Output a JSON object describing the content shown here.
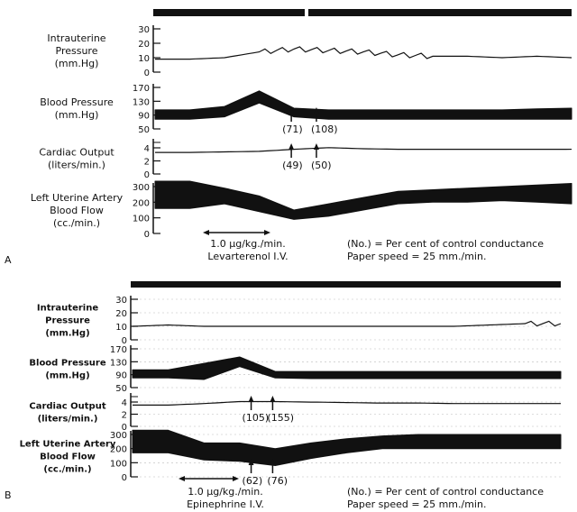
{
  "chart_data": [
    {
      "type": "line",
      "panel_label": "A",
      "footer": {
        "dose": "1.0 µg/kg./min.",
        "drug": "Levarterenol I.V.",
        "legend_note": "(No.) = Per cent of control conductance",
        "paper_speed": "Paper speed = 25 mm./min."
      },
      "tracks": [
        {
          "label": [
            "Intrauterine",
            "Pressure",
            "(mm.Hg)"
          ],
          "ticks": [
            "30",
            "20",
            "10",
            "0"
          ],
          "ylim": [
            0,
            30
          ],
          "values": [
            9,
            9,
            10,
            14,
            16,
            15,
            14,
            12,
            11,
            11,
            10,
            11,
            10
          ]
        },
        {
          "label": [
            "Blood Pressure",
            "(mm.Hg)"
          ],
          "ticks": [
            "170",
            "130",
            "90",
            "50"
          ],
          "ylim": [
            50,
            170
          ],
          "band_low": [
            78,
            78,
            85,
            125,
            85,
            78,
            78,
            78,
            78,
            78,
            78,
            78,
            78
          ],
          "band_high": [
            105,
            105,
            115,
            160,
            110,
            105,
            105,
            105,
            105,
            105,
            105,
            108,
            110
          ],
          "annotations": [
            {
              "text": "(71)",
              "at": 0.33
            },
            {
              "text": "(108)",
              "at": 0.39
            }
          ]
        },
        {
          "label": [
            "Cardiac Output",
            "(liters/min.)"
          ],
          "ticks": [
            "4",
            "2",
            "0"
          ],
          "ylim": [
            0,
            6
          ],
          "values": [
            4.1,
            4.1,
            4.2,
            4.3,
            4.7,
            5.0,
            4.8,
            4.7,
            4.7,
            4.7,
            4.7,
            4.7,
            4.7
          ],
          "annotations": [
            {
              "text": "(49)",
              "at": 0.33
            },
            {
              "text": "(50)",
              "at": 0.39
            }
          ]
        },
        {
          "label": [
            "Left Uterine Artery",
            "Blood Flow",
            "(cc./min.)"
          ],
          "ticks": [
            "300",
            "200",
            "100",
            "0"
          ],
          "ylim": [
            0,
            300
          ],
          "band_low": [
            160,
            160,
            190,
            140,
            90,
            110,
            150,
            190,
            200,
            200,
            210,
            200,
            190
          ],
          "band_high": [
            350,
            350,
            290,
            240,
            150,
            190,
            230,
            270,
            280,
            290,
            300,
            310,
            320
          ]
        }
      ]
    },
    {
      "type": "line",
      "panel_label": "B",
      "footer": {
        "dose": "1.0 µg/kg./min.",
        "drug": "Epinephrine I.V.",
        "legend_note": "(No.) = Per cent of control conductance",
        "paper_speed": "Paper speed = 25 mm./min."
      },
      "tracks": [
        {
          "label": [
            "Intrauterine",
            "Pressure",
            "(mm.Hg)"
          ],
          "ticks": [
            "30",
            "20",
            "10",
            "0"
          ],
          "ylim": [
            0,
            30
          ],
          "values": [
            10,
            11,
            10,
            10,
            10,
            10,
            10,
            10,
            10,
            10,
            11,
            12,
            12
          ]
        },
        {
          "label": [
            "Blood Pressure",
            "(mm.Hg)"
          ],
          "ticks": [
            "170",
            "130",
            "90",
            "50"
          ],
          "ylim": [
            50,
            170
          ],
          "band_low": [
            80,
            80,
            75,
            115,
            80,
            78,
            78,
            78,
            78,
            78,
            78,
            78,
            78
          ],
          "band_high": [
            105,
            105,
            125,
            145,
            100,
            100,
            100,
            100,
            100,
            100,
            100,
            100,
            100
          ]
        },
        {
          "label": [
            "Cardiac Output",
            "(liters/min.)"
          ],
          "ticks": [
            "4",
            "2",
            "0"
          ],
          "ylim": [
            0,
            6
          ],
          "values": [
            4.3,
            4.3,
            4.6,
            5.0,
            5.0,
            4.9,
            4.8,
            4.7,
            4.7,
            4.6,
            4.6,
            4.6,
            4.6
          ],
          "annotations": [
            {
              "text": "(105)",
              "at": 0.28
            },
            {
              "text": "(155)",
              "at": 0.33
            }
          ]
        },
        {
          "label": [
            "Left Uterine Artery",
            "Blood Flow",
            "(cc./min.)"
          ],
          "ticks": [
            "300",
            "200",
            "100",
            "0"
          ],
          "ylim": [
            0,
            300
          ],
          "band_low": [
            170,
            170,
            120,
            110,
            80,
            130,
            170,
            200,
            200,
            200,
            200,
            200,
            200
          ],
          "band_high": [
            330,
            330,
            240,
            240,
            200,
            240,
            270,
            290,
            300,
            300,
            300,
            300,
            300
          ],
          "annotations": [
            {
              "text": "(62)",
              "at": 0.28
            },
            {
              "text": "(76)",
              "at": 0.33
            }
          ]
        }
      ]
    }
  ]
}
